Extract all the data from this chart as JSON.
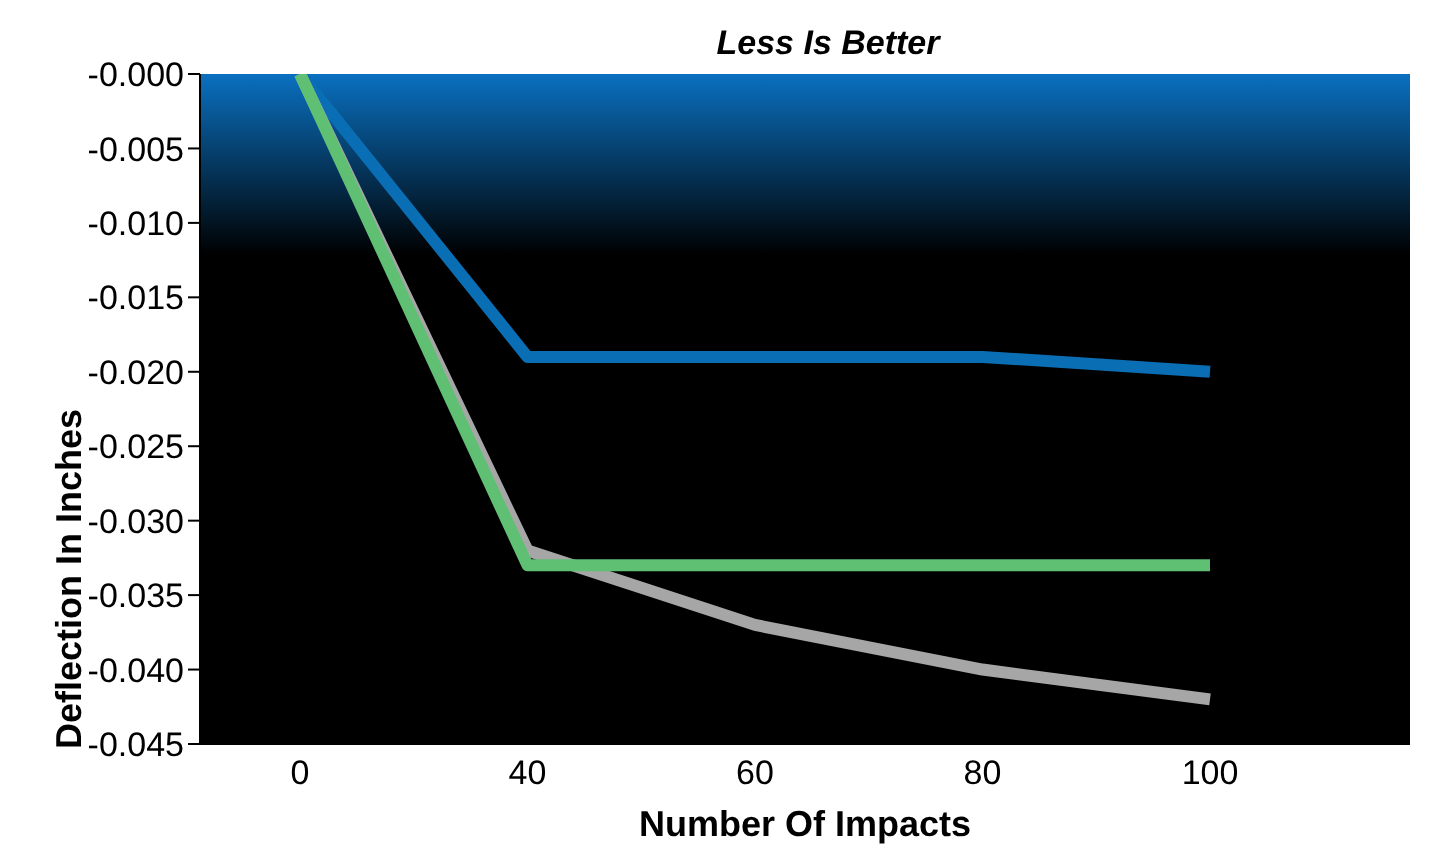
{
  "chart_data": {
    "type": "line",
    "title": "Less Is Better",
    "xlabel": "Number Of Impacts",
    "ylabel": "Deflection In Inches",
    "categories": [
      "0",
      "40",
      "60",
      "80",
      "100"
    ],
    "series": [
      {
        "color": "#0a6eb4",
        "values": [
          0,
          -0.019,
          -0.019,
          -0.019,
          -0.02
        ]
      },
      {
        "color": "#a6a6a6",
        "values": [
          0,
          -0.032,
          -0.037,
          -0.04,
          -0.042
        ]
      },
      {
        "color": "#5fbf73",
        "values": [
          0,
          -0.033,
          -0.033,
          -0.033,
          -0.033
        ]
      }
    ],
    "ylim": [
      -0.045,
      0
    ],
    "yticks": [
      {
        "value": 0,
        "label": "-0.000"
      },
      {
        "value": -0.005,
        "label": "-0.005"
      },
      {
        "value": -0.01,
        "label": "-0.010"
      },
      {
        "value": -0.015,
        "label": "-0.015"
      },
      {
        "value": -0.02,
        "label": "-0.020"
      },
      {
        "value": -0.025,
        "label": "-0.025"
      },
      {
        "value": -0.03,
        "label": "-0.030"
      },
      {
        "value": -0.035,
        "label": "-0.035"
      },
      {
        "value": -0.04,
        "label": "-0.040"
      },
      {
        "value": -0.045,
        "label": "-0.045"
      }
    ],
    "grid": false,
    "legend": false,
    "marker": "none",
    "line_style": "solid"
  }
}
